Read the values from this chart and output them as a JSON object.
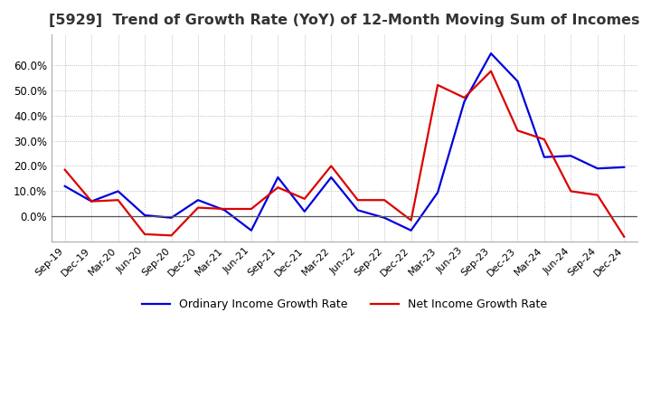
{
  "title": "[5929]  Trend of Growth Rate (YoY) of 12-Month Moving Sum of Incomes",
  "title_fontsize": 11.5,
  "ylim": [
    -0.1,
    0.72
  ],
  "yticks": [
    0.0,
    0.1,
    0.2,
    0.3,
    0.4,
    0.5,
    0.6
  ],
  "background_color": "#ffffff",
  "plot_bg_color": "#ffffff",
  "grid_color": "#aaaaaa",
  "x_labels": [
    "Sep-19",
    "Dec-19",
    "Mar-20",
    "Jun-20",
    "Sep-20",
    "Dec-20",
    "Mar-21",
    "Jun-21",
    "Sep-21",
    "Dec-21",
    "Mar-22",
    "Jun-22",
    "Sep-22",
    "Dec-22",
    "Mar-23",
    "Jun-23",
    "Sep-23",
    "Dec-23",
    "Mar-24",
    "Jun-24",
    "Sep-24",
    "Dec-24"
  ],
  "ordinary_income": [
    0.12,
    0.06,
    0.1,
    0.005,
    -0.005,
    0.065,
    0.025,
    -0.055,
    0.155,
    0.02,
    0.155,
    0.025,
    -0.005,
    -0.055,
    0.095,
    0.455,
    0.645,
    0.535,
    0.235,
    0.24,
    0.19,
    0.195
  ],
  "net_income": [
    0.185,
    0.06,
    0.065,
    -0.07,
    -0.075,
    0.035,
    0.03,
    0.03,
    0.115,
    0.07,
    0.2,
    0.065,
    0.065,
    -0.015,
    0.52,
    0.47,
    0.575,
    0.34,
    0.305,
    0.1,
    0.085,
    -0.08
  ],
  "ordinary_color": "#0000dd",
  "net_color": "#dd0000",
  "line_width": 1.6,
  "legend_ordinary": "Ordinary Income Growth Rate",
  "legend_net": "Net Income Growth Rate"
}
